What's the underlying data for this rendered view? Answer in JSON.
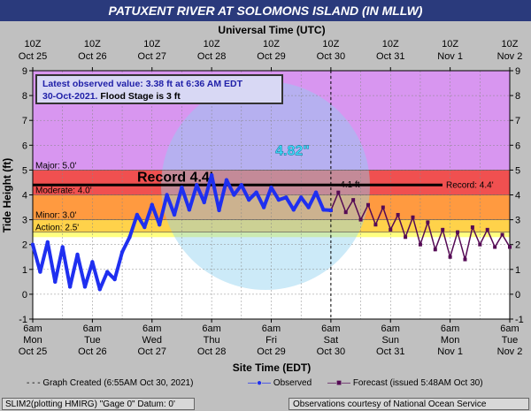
{
  "title": "PATUXENT RIVER AT SOLOMONS ISLAND (IN MLLW)",
  "top_axis_title": "Universal Time (UTC)",
  "bottom_axis_title": "Site Time (EDT)",
  "ylabel": "Tide Height (ft)",
  "info": {
    "line1": "Latest observed value: 3.38 ft at 6:36 AM EDT",
    "line2_date": "30-Oct-2021.",
    "line2_flood": "Flood Stage is 3 ft"
  },
  "legend": {
    "created": "Graph Created (6:55AM Oct 30, 2021)",
    "observed": "Observed",
    "forecast": "Forecast (issued 5:48AM Oct 30)"
  },
  "footer": {
    "left": "SLIM2(plotting HMIRG) \"Gage 0\" Datum: 0'",
    "right": "Observations courtesy of National Ocean Service"
  },
  "colors": {
    "major": "#d896f0",
    "major_band": "#b040f8",
    "moderate_band": "#f06040",
    "minor_band": "#ffa040",
    "action_band": "#ffff80",
    "observed": "#1f2ff0",
    "forecast": "#550a55",
    "title_bg": "#2a3a7c",
    "record_line": "#000000"
  },
  "chart_data": {
    "type": "line",
    "ylim": [
      -1,
      9
    ],
    "yticks": [
      -1,
      0,
      1,
      2,
      3,
      4,
      5,
      6,
      7,
      8,
      9
    ],
    "x_range_hours": [
      0,
      192
    ],
    "x_ticks_local": [
      {
        "line1": "6am",
        "line2": "Mon",
        "line3": "Oct 25"
      },
      {
        "line1": "6am",
        "line2": "Tue",
        "line3": "Oct 26"
      },
      {
        "line1": "6am",
        "line2": "Wed",
        "line3": "Oct 27"
      },
      {
        "line1": "6am",
        "line2": "Thu",
        "line3": "Oct 28"
      },
      {
        "line1": "6am",
        "line2": "Fri",
        "line3": "Oct 29"
      },
      {
        "line1": "6am",
        "line2": "Sat",
        "line3": "Oct 30"
      },
      {
        "line1": "6am",
        "line2": "Sun",
        "line3": "Oct 31"
      },
      {
        "line1": "6am",
        "line2": "Mon",
        "line3": "Nov 1"
      },
      {
        "line1": "6am",
        "line2": "Tue",
        "line3": "Nov 2"
      }
    ],
    "x_ticks_utc": [
      {
        "line1": "10Z",
        "line2": "Oct 25"
      },
      {
        "line1": "10Z",
        "line2": "Oct 26"
      },
      {
        "line1": "10Z",
        "line2": "Oct 27"
      },
      {
        "line1": "10Z",
        "line2": "Oct 28"
      },
      {
        "line1": "10Z",
        "line2": "Oct 29"
      },
      {
        "line1": "10Z",
        "line2": "Oct 30"
      },
      {
        "line1": "10Z",
        "line2": "Oct 31"
      },
      {
        "line1": "10Z",
        "line2": "Nov 1"
      },
      {
        "line1": "10Z",
        "line2": "Nov 2"
      }
    ],
    "stages": [
      {
        "name": "Major: 5.0'",
        "value": 5.0
      },
      {
        "name": "Moderate: 4.0'",
        "value": 4.0
      },
      {
        "name": "Minor: 3.0'",
        "value": 3.0
      },
      {
        "name": "Action: 2.5'",
        "value": 2.5
      }
    ],
    "record": {
      "label_left": "Record 4.4'",
      "label_right": "Record: 4.4'",
      "value": 4.4
    },
    "peak_label": "4.82\"",
    "forecast_peak_label": "4.1 ft",
    "created_hour": 120,
    "observed": {
      "x": [
        0,
        3,
        6,
        9,
        12,
        15,
        18,
        21,
        24,
        27,
        30,
        33,
        36,
        39,
        42,
        45,
        48,
        51,
        54,
        57,
        60,
        63,
        66,
        69,
        72,
        75,
        78,
        81,
        84,
        87,
        90,
        93,
        96,
        99,
        102,
        105,
        108,
        111,
        114,
        117,
        120
      ],
      "y": [
        2.0,
        0.9,
        2.1,
        0.5,
        1.9,
        0.3,
        1.6,
        0.3,
        1.3,
        0.2,
        0.9,
        0.6,
        1.7,
        2.3,
        3.2,
        2.7,
        3.6,
        2.8,
        4.0,
        3.2,
        4.3,
        3.4,
        4.4,
        3.7,
        4.8,
        3.38,
        4.6,
        4.0,
        4.4,
        3.8,
        4.1,
        3.5,
        4.3,
        3.8,
        3.9,
        3.4,
        3.9,
        3.5,
        4.1,
        3.4,
        3.38
      ]
    },
    "forecast": {
      "x": [
        120,
        123,
        126,
        129,
        132,
        135,
        138,
        141,
        144,
        147,
        150,
        153,
        156,
        159,
        162,
        165,
        168,
        171,
        174,
        177,
        180,
        183,
        186,
        189,
        192
      ],
      "y": [
        3.38,
        4.1,
        3.3,
        3.8,
        3.0,
        3.6,
        2.8,
        3.5,
        2.6,
        3.2,
        2.3,
        3.1,
        2.0,
        2.9,
        1.8,
        2.6,
        1.5,
        2.5,
        1.4,
        2.7,
        2.0,
        2.6,
        1.9,
        2.4,
        1.9
      ]
    }
  }
}
